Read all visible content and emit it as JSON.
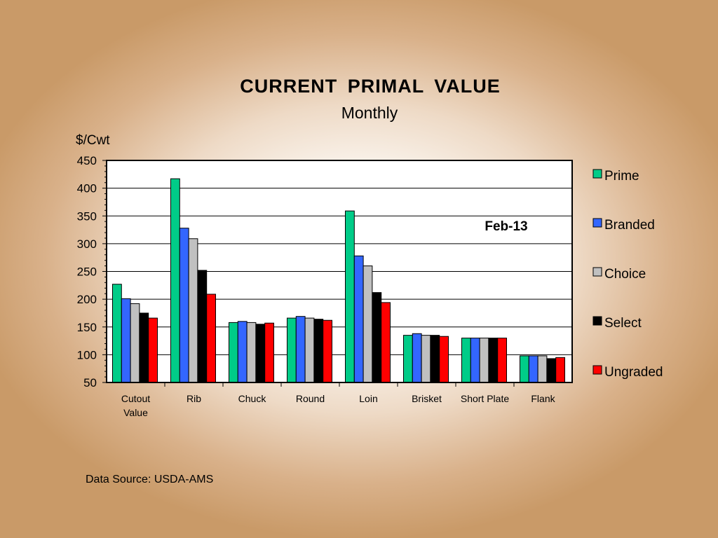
{
  "page": {
    "title": "CURRENT  PRIMAL  VALUE",
    "subtitle": "Monthly",
    "source": "Data Source: USDA-AMS"
  },
  "chart_data": {
    "type": "bar",
    "title": "CURRENT  PRIMAL  VALUE",
    "subtitle": "Monthly",
    "xlabel": "",
    "ylabel": "$/Cwt",
    "ylim": [
      50,
      450
    ],
    "yticks": [
      50,
      100,
      150,
      200,
      250,
      300,
      350,
      400,
      450
    ],
    "grid": true,
    "legend_position": "right",
    "annotation": "Feb-13",
    "categories": [
      [
        "Cutout",
        "Value"
      ],
      [
        "Rib"
      ],
      [
        "Chuck"
      ],
      [
        "Round"
      ],
      [
        "Loin"
      ],
      [
        "Brisket"
      ],
      [
        "Short Plate"
      ],
      [
        "Flank"
      ]
    ],
    "series": [
      {
        "name": "Prime",
        "color": "#00cc88",
        "values": [
          227,
          417,
          158,
          166,
          359,
          135,
          130,
          98
        ]
      },
      {
        "name": "Branded",
        "color": "#3366ff",
        "values": [
          201,
          328,
          160,
          169,
          278,
          138,
          130,
          98
        ]
      },
      {
        "name": "Choice",
        "color": "#c0c0c0",
        "values": [
          192,
          309,
          158,
          166,
          260,
          135,
          130,
          98
        ]
      },
      {
        "name": "Select",
        "color": "#000000",
        "values": [
          175,
          252,
          155,
          164,
          212,
          135,
          130,
          93
        ]
      },
      {
        "name": "Ungraded",
        "color": "#ff0000",
        "values": [
          166,
          209,
          157,
          162,
          194,
          133,
          130,
          95
        ]
      }
    ]
  }
}
